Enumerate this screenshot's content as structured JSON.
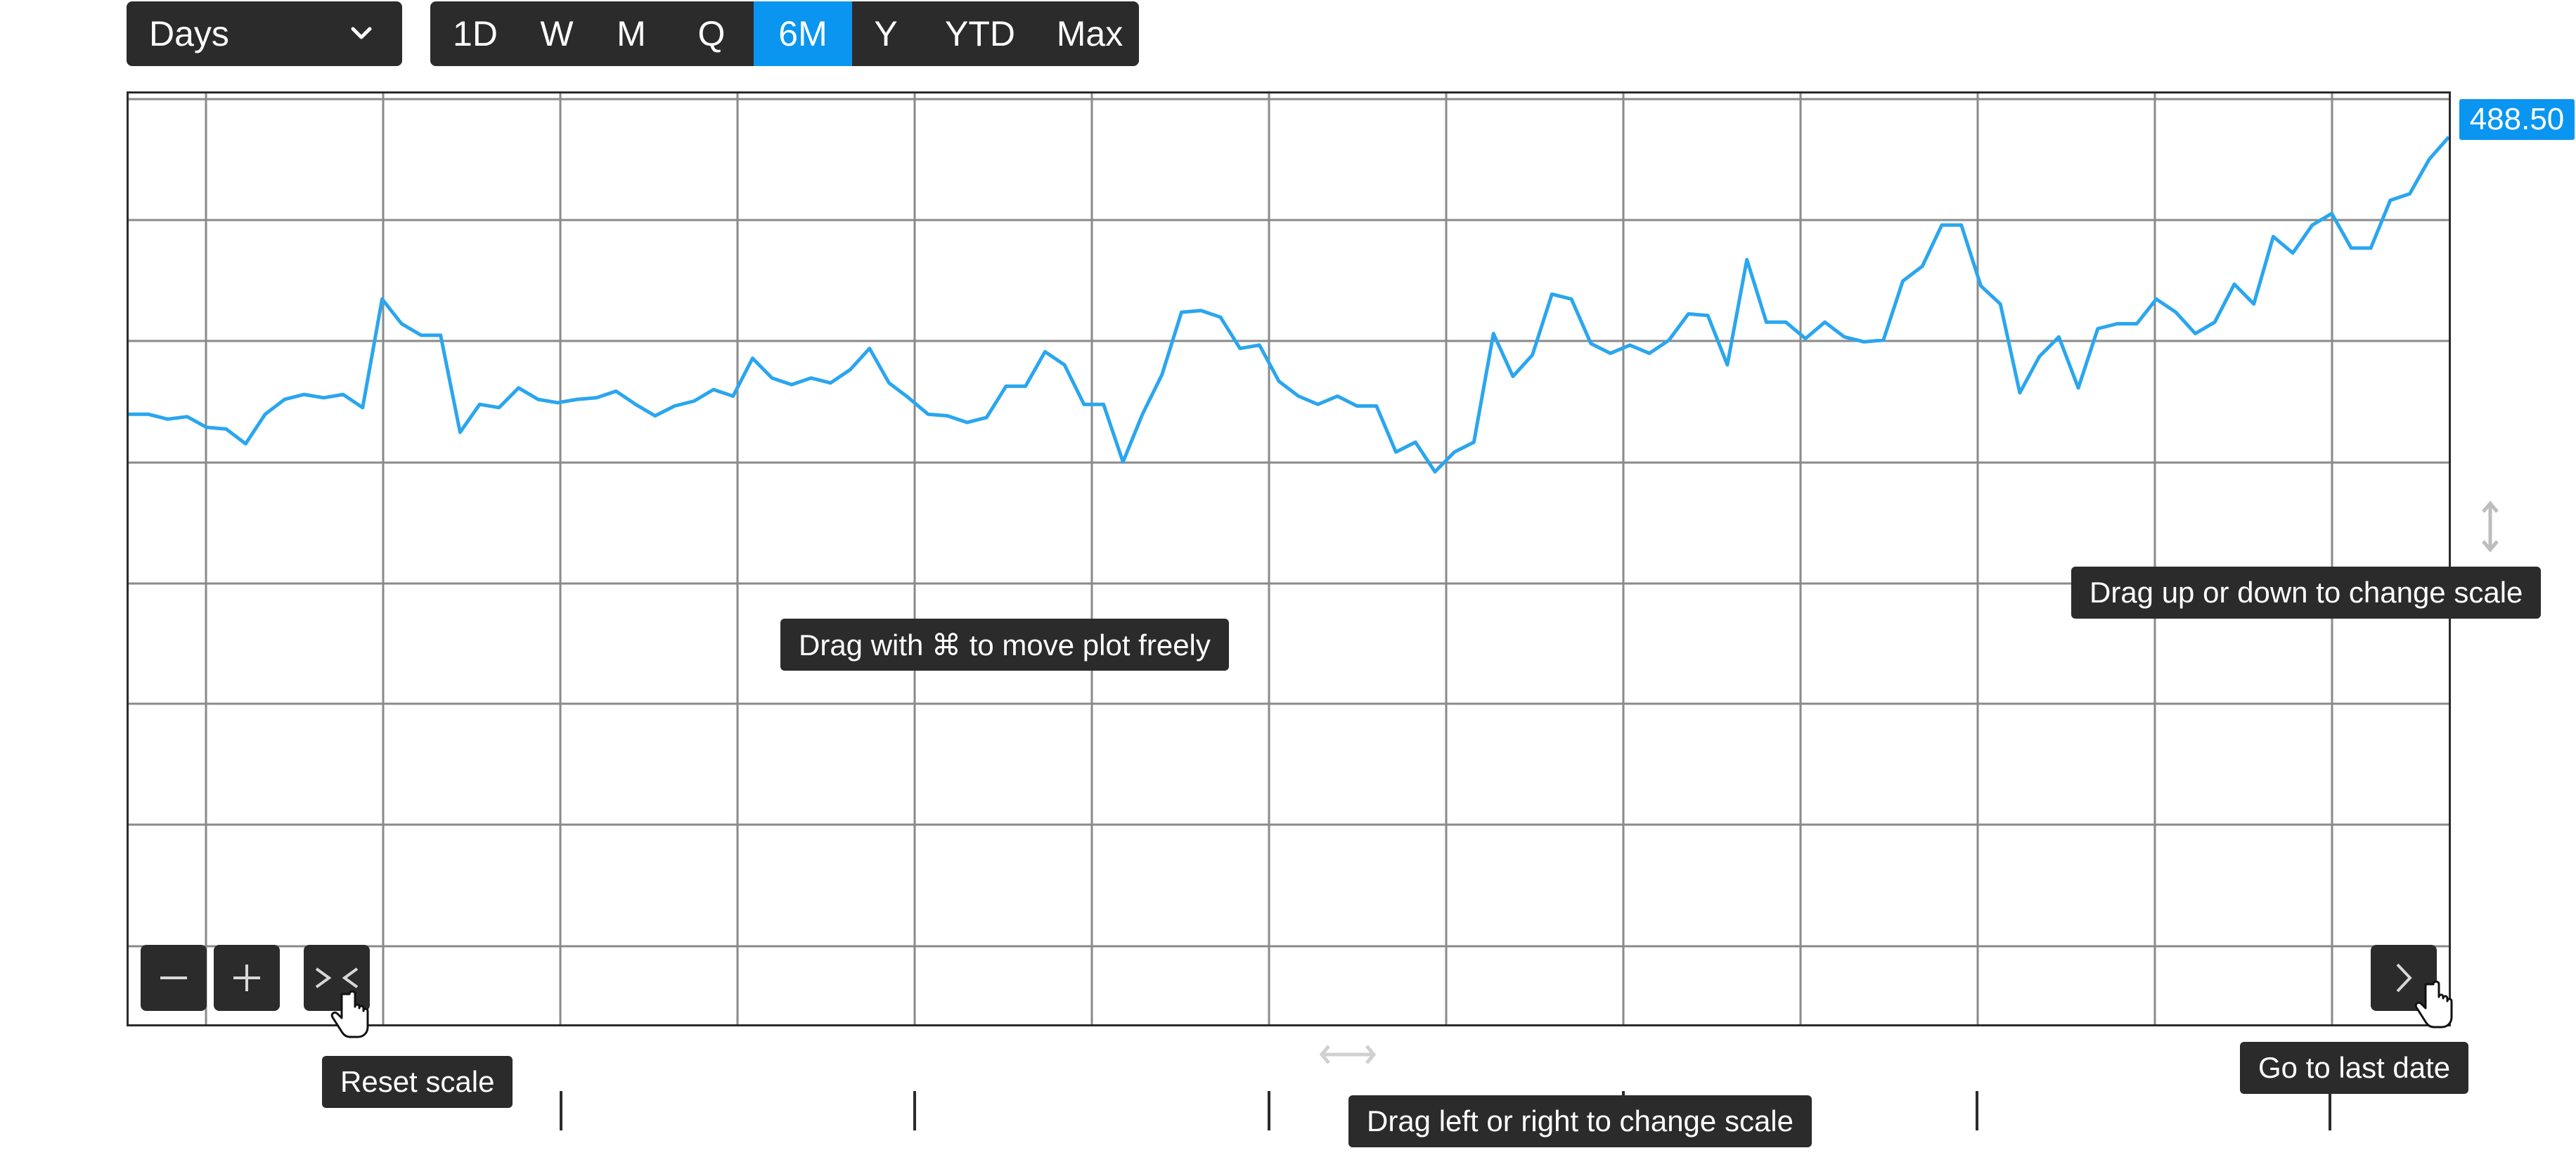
{
  "interval": {
    "label": "Days"
  },
  "ranges": [
    {
      "label": "1D",
      "active": false
    },
    {
      "label": "W",
      "active": false
    },
    {
      "label": "M",
      "active": false
    },
    {
      "label": "Q",
      "active": false
    },
    {
      "label": "6M",
      "active": true
    },
    {
      "label": "Y",
      "active": false
    },
    {
      "label": "YTD",
      "active": false
    },
    {
      "label": "Max",
      "active": false
    }
  ],
  "last_price": "488.50",
  "tooltips": {
    "move_plot": "Drag with ⌘ to move plot freely",
    "y_scale": "Drag up or down to change scale",
    "x_scale": "Drag left or right to change scale",
    "reset": "Reset scale",
    "last_date": "Go to last date"
  },
  "icons": {
    "zoom_out": "minus-icon",
    "zoom_in": "plus-icon",
    "reset": "reset-scale-icon",
    "last_date": "chevron-right-icon"
  },
  "colors": {
    "line": "#2aa6ef",
    "accent": "#0a95f0",
    "dark": "#2b2b2b",
    "grid": "#8a8a8a"
  },
  "chart_data": {
    "type": "line",
    "title": "",
    "xlabel": "",
    "ylabel": "",
    "x_tick_labels": [],
    "y_tick_labels": [],
    "last_value": 488.5,
    "grid": true,
    "series": [
      {
        "values": [
          320.0,
          320.0,
          317.0,
          318.5,
          312.0,
          311.0,
          302.0,
          320.0,
          329.0,
          332.0,
          330.0,
          332.0,
          324.0,
          390.0,
          375.0,
          368.0,
          368.0,
          309.0,
          326.0,
          324.0,
          336.0,
          329.0,
          327.0,
          329.0,
          330.0,
          334.0,
          326.0,
          319.0,
          325.0,
          328.0,
          335.0,
          331.0,
          354.0,
          342.0,
          338.0,
          342.0,
          339.0,
          347.0,
          360.0,
          339.0,
          330.0,
          320.0,
          319.0,
          315.0,
          318.0,
          337.0,
          337.0,
          358.0,
          350.0,
          326.0,
          326.0,
          291.0,
          320.0,
          344.0,
          382.0,
          383.0,
          379.0,
          360.0,
          362.0,
          340.0,
          331.0,
          326.0,
          331.0,
          325.0,
          325.0,
          297.0,
          303.0,
          285.0,
          297.0,
          303.0,
          369.0,
          343.0,
          356.0,
          393.0,
          390.0,
          363.0,
          357.0,
          362.0,
          357.0,
          365.0,
          381.0,
          380.0,
          350.0,
          414.0,
          376.0,
          376.0,
          366.0,
          376.0,
          367.0,
          364.0,
          365.0,
          401.0,
          410.0,
          435.0,
          435.0,
          398.0,
          387.0,
          333.0,
          355.0,
          367.0,
          336.0,
          372.0,
          375.0,
          375.0,
          390.0,
          382.0,
          369.0,
          376.0,
          399.0,
          387.0,
          428.0,
          418.0,
          435.0,
          442.0,
          421.0,
          421.0,
          450.0,
          454.0,
          475.0,
          488.5
        ]
      }
    ]
  }
}
